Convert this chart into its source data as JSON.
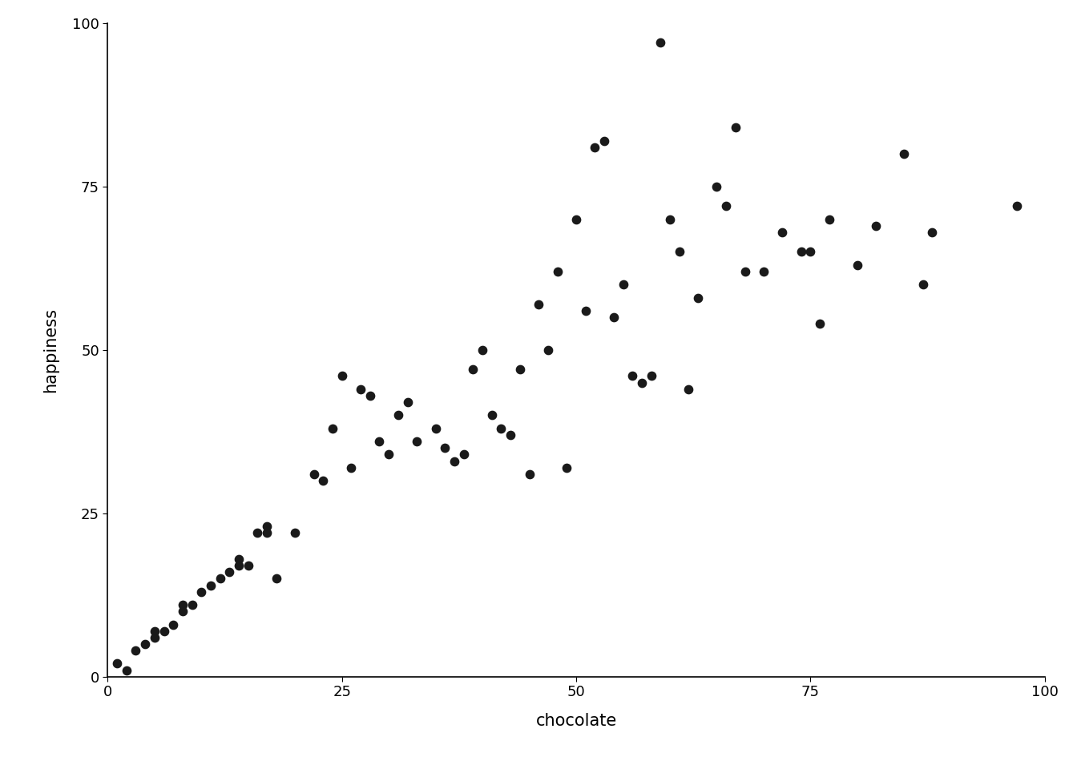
{
  "x": [
    1,
    2,
    3,
    4,
    5,
    5,
    6,
    7,
    8,
    8,
    9,
    10,
    11,
    12,
    13,
    14,
    14,
    15,
    16,
    17,
    17,
    18,
    20,
    22,
    23,
    24,
    25,
    26,
    27,
    28,
    29,
    30,
    31,
    32,
    33,
    35,
    36,
    37,
    38,
    39,
    40,
    41,
    42,
    43,
    44,
    45,
    46,
    47,
    48,
    49,
    50,
    51,
    52,
    53,
    54,
    55,
    56,
    57,
    58,
    59,
    60,
    61,
    62,
    63,
    65,
    66,
    67,
    68,
    70,
    72,
    74,
    75,
    76,
    77,
    80,
    82,
    85,
    87,
    88,
    97
  ],
  "y": [
    2,
    1,
    4,
    5,
    6,
    7,
    7,
    8,
    10,
    11,
    11,
    13,
    14,
    15,
    16,
    17,
    18,
    17,
    22,
    22,
    23,
    15,
    22,
    31,
    30,
    38,
    46,
    32,
    44,
    43,
    36,
    34,
    40,
    42,
    36,
    38,
    35,
    33,
    34,
    47,
    50,
    40,
    38,
    37,
    47,
    31,
    57,
    50,
    62,
    32,
    70,
    56,
    81,
    82,
    55,
    60,
    46,
    45,
    46,
    97,
    70,
    65,
    44,
    58,
    75,
    72,
    84,
    62,
    62,
    68,
    65,
    65,
    54,
    70,
    63,
    69,
    80,
    60,
    68,
    72
  ],
  "xlabel": "chocolate",
  "ylabel": "happiness",
  "xlim": [
    0,
    100
  ],
  "ylim": [
    0,
    100
  ],
  "xticks": [
    0,
    25,
    50,
    75,
    100
  ],
  "yticks": [
    0,
    25,
    50,
    75,
    100
  ],
  "marker_color": "#1a1a1a",
  "marker_size": 55,
  "background_color": "#ffffff",
  "spine_color": "#000000",
  "label_fontsize": 15,
  "tick_fontsize": 13,
  "spine_linewidth": 1.2
}
